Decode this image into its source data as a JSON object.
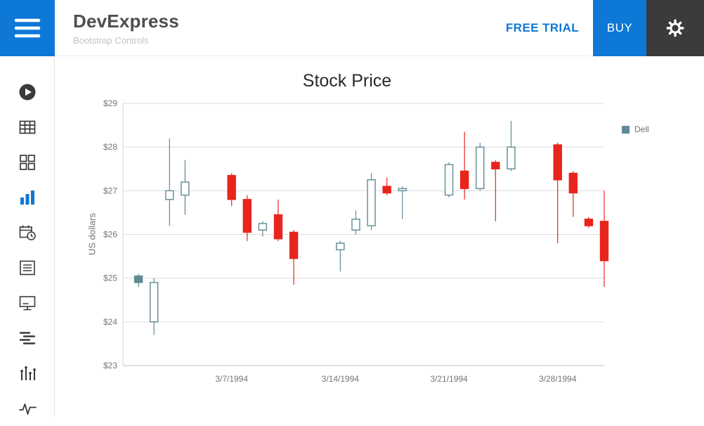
{
  "header": {
    "brand_title": "DevExpress",
    "brand_subtitle": "Bootstrap Controls",
    "free_trial_label": "FREE TRIAL",
    "buy_label": "BUY",
    "icons": [
      "hamburger-icon",
      "gear-icon"
    ],
    "colors": {
      "accent": "#0d78d6",
      "gear_bg": "#3b3b3b"
    }
  },
  "sidebar": {
    "items": [
      {
        "icon": "play-icon",
        "active": false
      },
      {
        "icon": "data-grid-icon",
        "active": false
      },
      {
        "icon": "card-view-icon",
        "active": false
      },
      {
        "icon": "bar-chart-icon",
        "active": true
      },
      {
        "icon": "scheduler-icon",
        "active": false
      },
      {
        "icon": "list-box-icon",
        "active": false
      },
      {
        "icon": "editor-icon",
        "active": false
      },
      {
        "icon": "tree-list-icon",
        "active": false
      },
      {
        "icon": "financial-chart-icon",
        "active": false
      },
      {
        "icon": "sparkline-icon",
        "active": false
      }
    ]
  },
  "chart_data": {
    "type": "candlestick",
    "title": "Stock Price",
    "ylabel": "US dollars",
    "ylim": [
      23,
      29
    ],
    "y_ticks": [
      {
        "label": "$23",
        "value": 23
      },
      {
        "label": "$24",
        "value": 24
      },
      {
        "label": "$25",
        "value": 25
      },
      {
        "label": "$26",
        "value": 26
      },
      {
        "label": "$27",
        "value": 27
      },
      {
        "label": "$28",
        "value": 28
      },
      {
        "label": "$29",
        "value": 29
      }
    ],
    "x_ticks": [
      {
        "label": "3/7/1994",
        "date": "3/7/1994"
      },
      {
        "label": "3/14/1994",
        "date": "3/14/1994"
      },
      {
        "label": "3/21/1994",
        "date": "3/21/1994"
      },
      {
        "label": "3/28/1994",
        "date": "3/28/1994"
      }
    ],
    "x_range": [
      "2/28/1994",
      "3/31/1994"
    ],
    "grid": true,
    "legend": {
      "label": "Dell",
      "color": "#5f8b95",
      "position": "right"
    },
    "colors": {
      "main": "#5f8b95",
      "up_fill": "#ffffff",
      "reduction": "#e8251c",
      "grid": "#dcdcdc",
      "axis": "#c2c2c2",
      "axis_left": "#d4d4d4",
      "text": "#767676"
    },
    "series": [
      {
        "name": "Dell",
        "points": [
          {
            "date": "3/1/1994",
            "open": 25.05,
            "high": 25.1,
            "low": 24.8,
            "close": 24.9
          },
          {
            "date": "3/2/1994",
            "open": 24.0,
            "high": 25.0,
            "low": 23.7,
            "close": 24.9
          },
          {
            "date": "3/3/1994",
            "open": 26.8,
            "high": 28.2,
            "low": 26.2,
            "close": 27.0
          },
          {
            "date": "3/4/1994",
            "open": 26.9,
            "high": 27.7,
            "low": 26.45,
            "close": 27.2
          },
          {
            "date": "3/7/1994",
            "open": 27.35,
            "high": 27.4,
            "low": 26.65,
            "close": 26.8
          },
          {
            "date": "3/8/1994",
            "open": 26.8,
            "high": 26.9,
            "low": 25.85,
            "close": 26.05
          },
          {
            "date": "3/9/1994",
            "open": 26.1,
            "high": 26.3,
            "low": 25.95,
            "close": 26.25
          },
          {
            "date": "3/10/1994",
            "open": 26.45,
            "high": 26.8,
            "low": 25.85,
            "close": 25.9
          },
          {
            "date": "3/11/1994",
            "open": 26.05,
            "high": 26.1,
            "low": 24.85,
            "close": 25.45
          },
          {
            "date": "3/14/1994",
            "open": 25.65,
            "high": 25.85,
            "low": 25.15,
            "close": 25.8
          },
          {
            "date": "3/15/1994",
            "open": 26.1,
            "high": 26.55,
            "low": 26.0,
            "close": 26.35
          },
          {
            "date": "3/16/1994",
            "open": 26.2,
            "high": 27.4,
            "low": 26.1,
            "close": 27.25
          },
          {
            "date": "3/17/1994",
            "open": 27.1,
            "high": 27.3,
            "low": 26.9,
            "close": 26.95
          },
          {
            "date": "3/18/1994",
            "open": 27.0,
            "high": 27.1,
            "low": 26.35,
            "close": 27.05
          },
          {
            "date": "3/21/1994",
            "open": 26.9,
            "high": 27.65,
            "low": 26.85,
            "close": 27.6
          },
          {
            "date": "3/22/1994",
            "open": 27.45,
            "high": 28.35,
            "low": 26.8,
            "close": 27.05
          },
          {
            "date": "3/23/1994",
            "open": 27.05,
            "high": 28.1,
            "low": 27.0,
            "close": 28.0
          },
          {
            "date": "3/24/1994",
            "open": 27.65,
            "high": 27.7,
            "low": 26.3,
            "close": 27.5
          },
          {
            "date": "3/25/1994",
            "open": 27.5,
            "high": 28.6,
            "low": 27.45,
            "close": 28.0
          },
          {
            "date": "3/28/1994",
            "open": 28.05,
            "high": 28.1,
            "low": 25.8,
            "close": 27.25
          },
          {
            "date": "3/29/1994",
            "open": 27.4,
            "high": 27.45,
            "low": 26.4,
            "close": 26.95
          },
          {
            "date": "3/30/1994",
            "open": 26.35,
            "high": 26.4,
            "low": 26.15,
            "close": 26.2
          },
          {
            "date": "3/31/1994",
            "open": 26.3,
            "high": 27.0,
            "low": 24.8,
            "close": 25.4
          }
        ]
      }
    ]
  }
}
